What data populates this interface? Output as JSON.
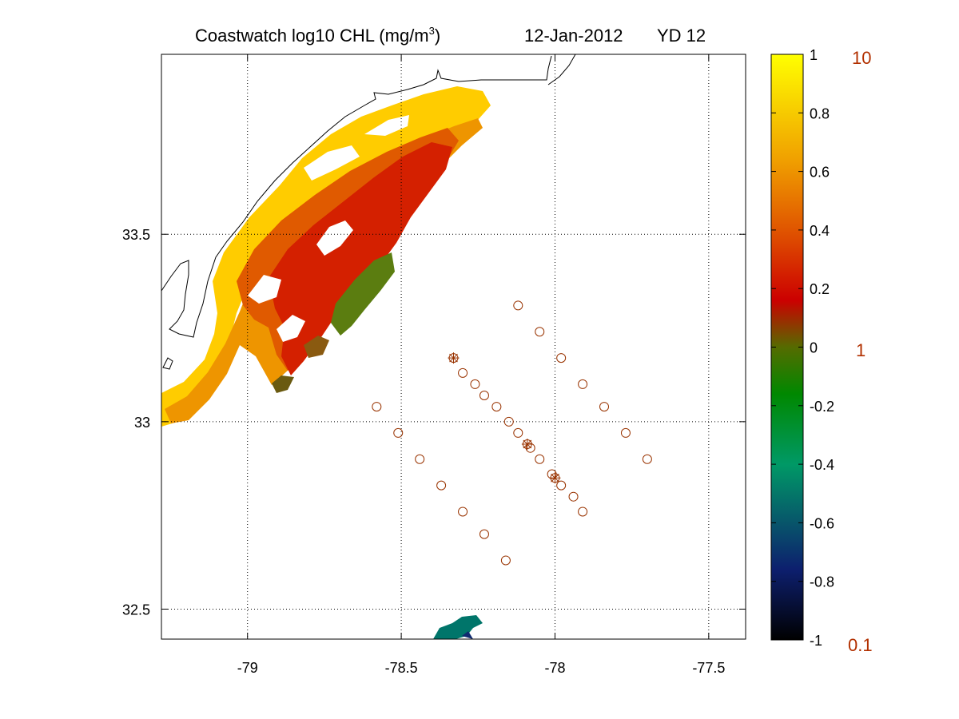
{
  "title": {
    "main": "Coastwatch  log10  CHL (mg/m",
    "superscript": "3",
    "close": ")",
    "date": "12-Jan-2012",
    "yearday": "YD 12"
  },
  "map": {
    "lon_range": [
      -79.28,
      -77.38
    ],
    "lat_range": [
      32.42,
      33.98
    ],
    "x_ticks": [
      -79,
      -78.5,
      -78,
      -77.5
    ],
    "x_tick_labels": [
      "-79",
      "-78.5",
      "-78",
      "-77.5"
    ],
    "y_ticks": [
      32.5,
      33,
      33.5
    ],
    "y_tick_labels": [
      "32.5",
      "33",
      "33.5"
    ],
    "grid": "dotted",
    "coastline_color": "#000000",
    "station_marker_color": "#993300",
    "stations_circle": [
      [
        -78.12,
        33.31
      ],
      [
        -78.05,
        33.24
      ],
      [
        -77.98,
        33.17
      ],
      [
        -77.91,
        33.1
      ],
      [
        -77.84,
        33.04
      ],
      [
        -77.77,
        32.97
      ],
      [
        -77.7,
        32.9
      ],
      [
        -78.3,
        33.13
      ],
      [
        -78.26,
        33.1
      ],
      [
        -78.23,
        33.07
      ],
      [
        -78.19,
        33.04
      ],
      [
        -78.15,
        33.0
      ],
      [
        -78.12,
        32.97
      ],
      [
        -78.08,
        32.93
      ],
      [
        -78.05,
        32.9
      ],
      [
        -78.01,
        32.86
      ],
      [
        -77.98,
        32.83
      ],
      [
        -77.94,
        32.8
      ],
      [
        -77.91,
        32.76
      ],
      [
        -78.58,
        33.04
      ],
      [
        -78.51,
        32.97
      ],
      [
        -78.44,
        32.9
      ],
      [
        -78.37,
        32.83
      ],
      [
        -78.3,
        32.76
      ],
      [
        -78.23,
        32.7
      ],
      [
        -78.16,
        32.63
      ]
    ],
    "stations_star": [
      [
        -78.33,
        33.17
      ],
      [
        -78.09,
        32.94
      ],
      [
        -78.0,
        32.85
      ]
    ]
  },
  "colorbar": {
    "ticks": [
      "1",
      "0.8",
      "0.6",
      "0.4",
      "0.2",
      "0",
      "-0.2",
      "-0.4",
      "-0.6",
      "-0.8",
      "-1"
    ],
    "range": [
      -1,
      1
    ],
    "linear_labels": [
      "10",
      "1",
      "0.1"
    ],
    "linear_label_color": "#b23000",
    "colormap": [
      "#000000",
      "#0d1f6e",
      "#009966",
      "#008800",
      "#556b00",
      "#cc0000",
      "#e05500",
      "#f0a000",
      "#ffff00"
    ]
  },
  "chlorophyll_patches": [
    {
      "name": "inner-shelf-yellow",
      "color": "#ffcc00"
    },
    {
      "name": "nearshore-orange",
      "color": "#ee9500"
    },
    {
      "name": "mid-shelf-orange-red",
      "color": "#e05a00"
    },
    {
      "name": "mid-shelf-red",
      "color": "#d42000"
    },
    {
      "name": "offshore-edge-green",
      "color": "#5b7d10"
    },
    {
      "name": "southern-teal",
      "color": "#00756a"
    }
  ]
}
